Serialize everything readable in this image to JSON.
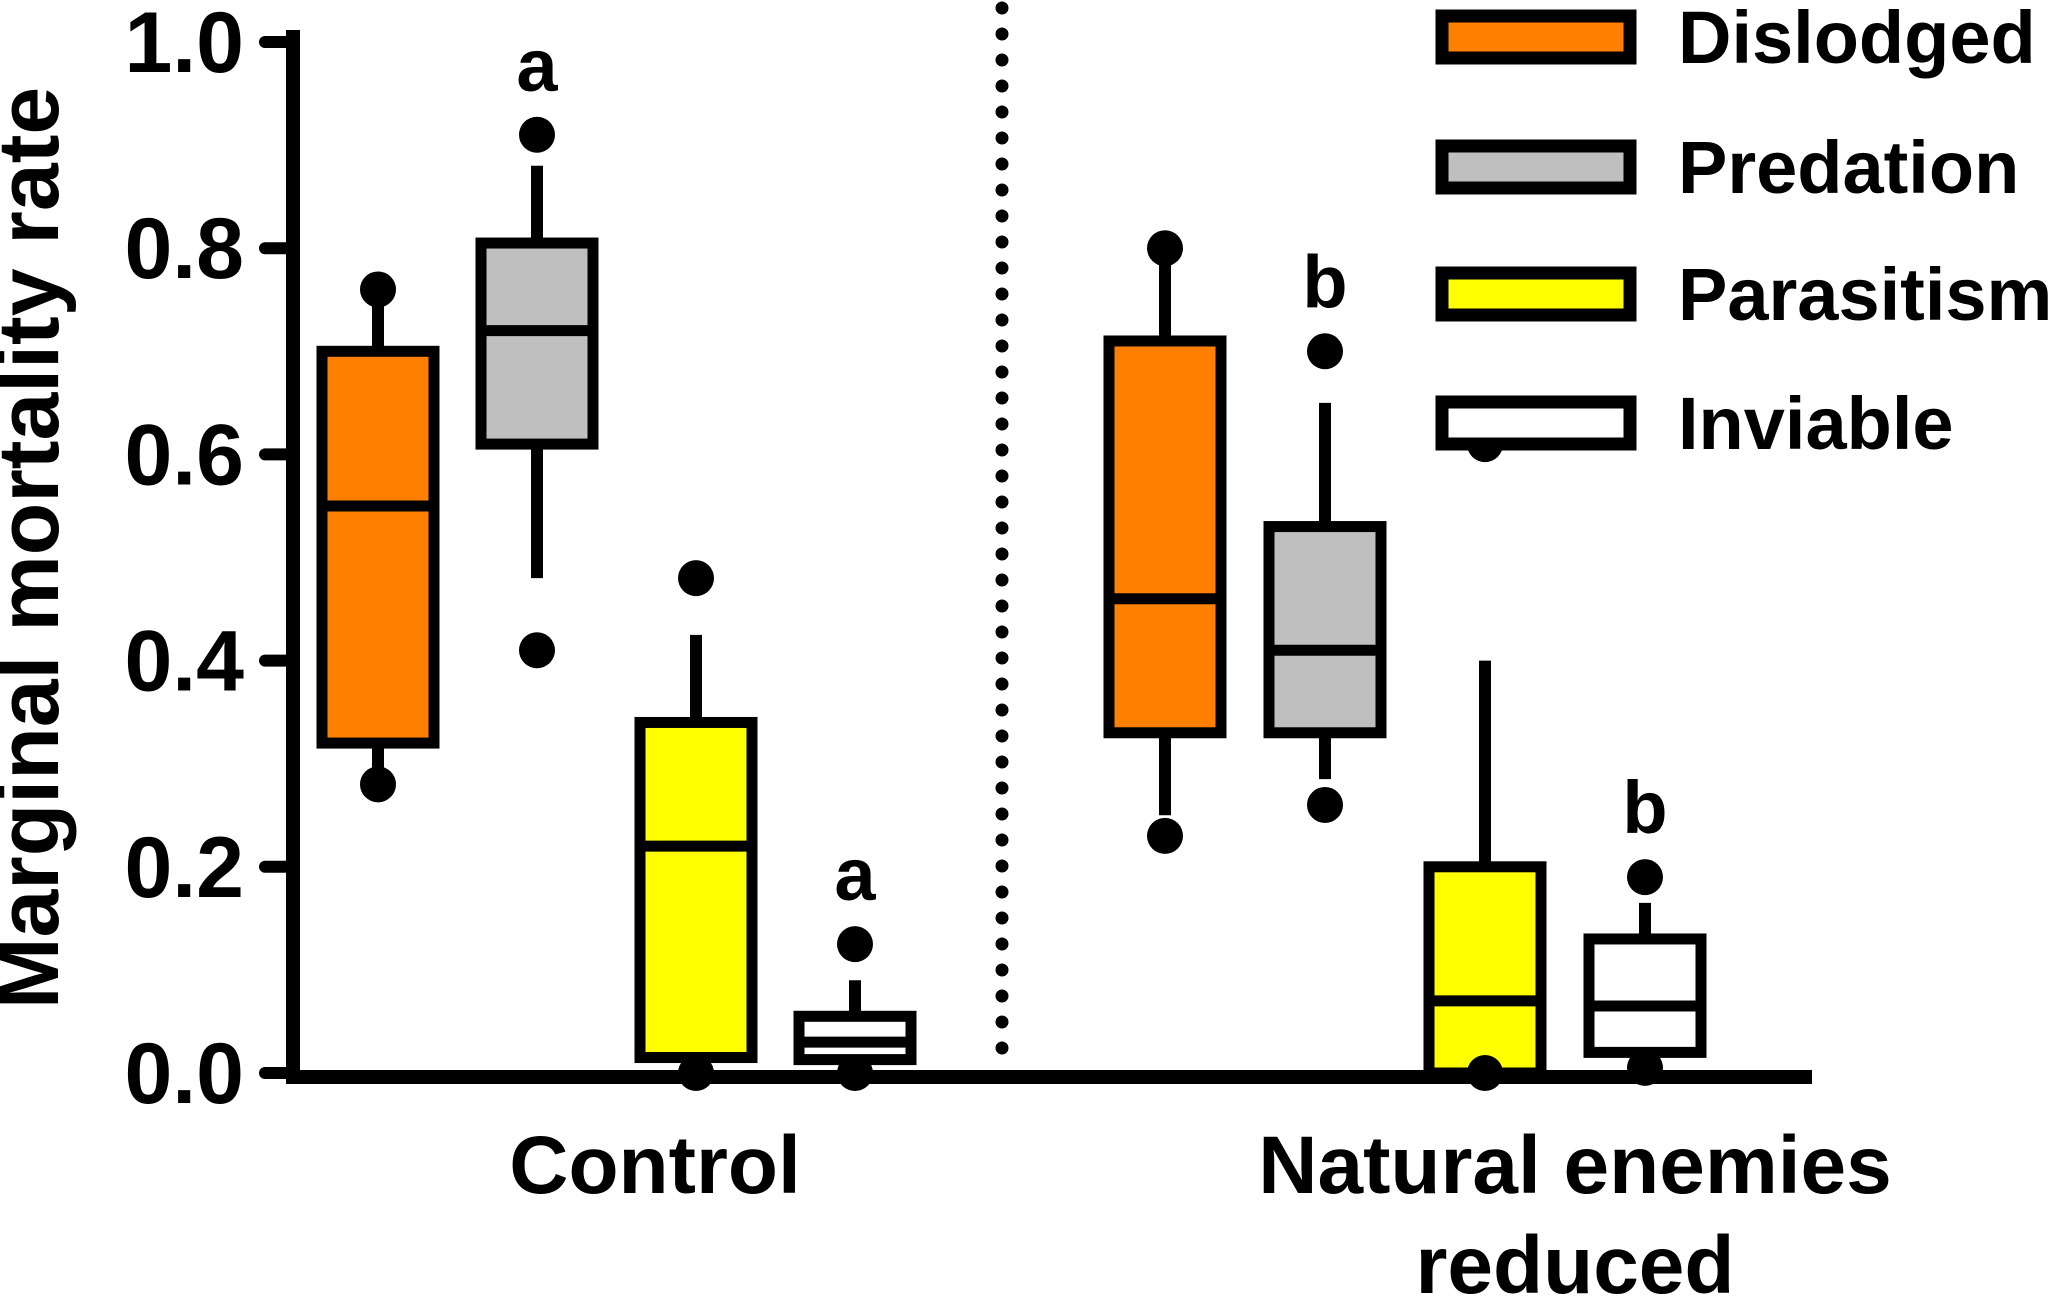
{
  "figure": {
    "background": "#FFFFFF",
    "axis_color": "#000000"
  },
  "chart_data": {
    "type": "boxplot",
    "title": "",
    "xlabel": "",
    "ylabel": "Marginal mortality rate",
    "ylim": [
      0.0,
      1.0
    ],
    "ytick_labels": [
      "0.0",
      "0.2",
      "0.4",
      "0.6",
      "0.8",
      "1.0"
    ],
    "ytick_values": [
      0.0,
      0.2,
      0.4,
      0.6,
      0.8,
      1.0
    ],
    "grid": false,
    "legend_position": "top-right",
    "legend": [
      {
        "label": "Dislodged",
        "color": "#FF8000"
      },
      {
        "label": "Predation",
        "color": "#BFBFBF"
      },
      {
        "label": "Parasitism",
        "color": "#FFFF00"
      },
      {
        "label": "Inviable",
        "color": "#FFFFFF"
      }
    ],
    "group_labels": [
      {
        "id": "control",
        "lines": [
          "Control"
        ]
      },
      {
        "id": "natural-enemies-reduced",
        "lines": [
          "Natural enemies",
          "reduced"
        ]
      }
    ],
    "divider": {
      "style": "dotted",
      "orientation": "vertical",
      "position": "between-groups"
    },
    "boxes": [
      {
        "group": 0,
        "series": "Dislodged",
        "color": "#FF8000",
        "q1": 0.32,
        "median": 0.55,
        "q3": 0.7,
        "whisker_low": 0.295,
        "whisker_high": 0.745,
        "outliers_high": [
          0.76
        ],
        "outliers_low": [
          0.28
        ],
        "letter": null
      },
      {
        "group": 0,
        "series": "Predation",
        "color": "#BFBFBF",
        "q1": 0.61,
        "median": 0.72,
        "q3": 0.805,
        "whisker_low": 0.48,
        "whisker_high": 0.88,
        "outliers_high": [
          0.91
        ],
        "outliers_low": [
          0.41
        ],
        "letter": "a"
      },
      {
        "group": 0,
        "series": "Parasitism",
        "color": "#FFFF00",
        "q1": 0.015,
        "median": 0.22,
        "q3": 0.34,
        "whisker_low": null,
        "whisker_high": 0.425,
        "outliers_high": [
          0.48
        ],
        "outliers_low": [
          0.0
        ],
        "letter": null
      },
      {
        "group": 0,
        "series": "Inviable",
        "color": "#FFFFFF",
        "q1": 0.013,
        "median": 0.03,
        "q3": 0.055,
        "whisker_low": 0.005,
        "whisker_high": 0.09,
        "outliers_high": [
          0.125
        ],
        "outliers_low": [
          0.0
        ],
        "letter": "a"
      },
      {
        "group": 1,
        "series": "Dislodged",
        "color": "#FF8000",
        "q1": 0.33,
        "median": 0.46,
        "q3": 0.71,
        "whisker_low": 0.25,
        "whisker_high": 0.785,
        "outliers_high": [
          0.8
        ],
        "outliers_low": [
          0.23
        ],
        "letter": null
      },
      {
        "group": 1,
        "series": "Predation",
        "color": "#BFBFBF",
        "q1": 0.33,
        "median": 0.41,
        "q3": 0.53,
        "whisker_low": 0.285,
        "whisker_high": 0.65,
        "outliers_high": [
          0.7
        ],
        "outliers_low": [
          0.26
        ],
        "letter": "b"
      },
      {
        "group": 1,
        "series": "Parasitism",
        "color": "#FFFF00",
        "q1": 0.0,
        "median": 0.07,
        "q3": 0.2,
        "whisker_low": null,
        "whisker_high": 0.4,
        "outliers_high": [
          0.61
        ],
        "outliers_low": [
          0.0
        ],
        "letter": null
      },
      {
        "group": 1,
        "series": "Inviable",
        "color": "#FFFFFF",
        "q1": 0.02,
        "median": 0.065,
        "q3": 0.13,
        "whisker_low": 0.01,
        "whisker_high": 0.165,
        "outliers_high": [
          0.19
        ],
        "outliers_low": [
          0.005
        ],
        "letter": "b"
      }
    ]
  }
}
